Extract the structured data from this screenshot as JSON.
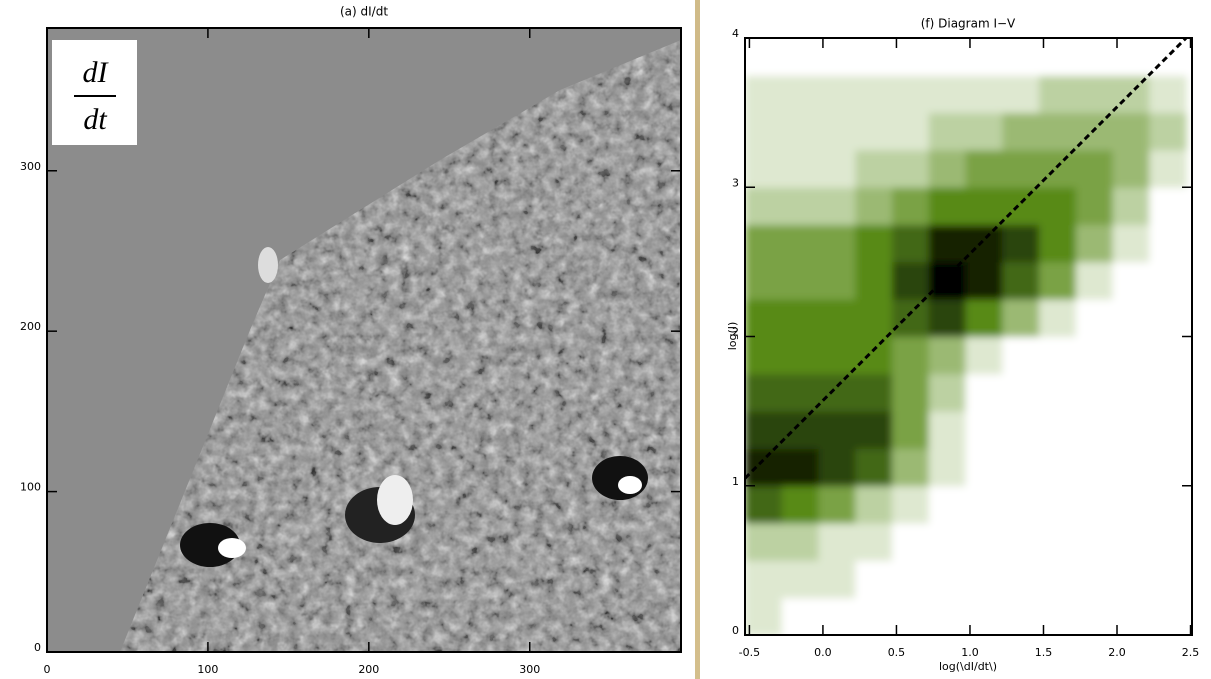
{
  "chart_data": [
    {
      "type": "image",
      "title": "(a)  dI/dt",
      "annotation": [
        "dI",
        "dt"
      ],
      "xlim": [
        0,
        394
      ],
      "ylim": [
        0,
        389
      ],
      "xticks": [
        0,
        100,
        200,
        300
      ],
      "yticks": [
        0,
        100,
        200,
        300
      ]
    },
    {
      "type": "histogram2d",
      "title": "(f)  Diagram I−V",
      "xlabel": "log(\\dI/dt\\)",
      "ylabel": "log(I)",
      "xlim": [
        -0.53,
        2.51
      ],
      "ylim": [
        0,
        4
      ],
      "xticks": [
        -0.5,
        {
          "value": 0,
          "label": "0.0"
        },
        0.5,
        {
          "value": 1,
          "label": "1.0"
        },
        1.5,
        {
          "value": 2,
          "label": "2.0"
        },
        2.5
      ],
      "yticks": [
        0,
        1,
        2,
        3,
        4
      ],
      "xbins": [
        -0.53,
        -0.28,
        -0.03,
        0.22,
        0.47,
        0.72,
        0.97,
        1.22,
        1.47,
        1.72,
        1.97,
        2.22,
        2.47
      ],
      "ybins": [
        0,
        0.25,
        0.5,
        0.75,
        1,
        1.25,
        1.5,
        1.75,
        2,
        2.25,
        2.5,
        2.75,
        3,
        3.25,
        3.5,
        3.75,
        4
      ],
      "z": [
        [
          1,
          0,
          0,
          0,
          0,
          0,
          0,
          0,
          0,
          0,
          0,
          0
        ],
        [
          1,
          1,
          1,
          0,
          0,
          0,
          0,
          0,
          0,
          0,
          0,
          0
        ],
        [
          2,
          2,
          1,
          1,
          0,
          0,
          0,
          0,
          0,
          0,
          0,
          0
        ],
        [
          6,
          5,
          4,
          2,
          1,
          0,
          0,
          0,
          0,
          0,
          0,
          0
        ],
        [
          8,
          8,
          7,
          6,
          3,
          1,
          0,
          0,
          0,
          0,
          0,
          0
        ],
        [
          7,
          7,
          7,
          7,
          4,
          1,
          0,
          0,
          0,
          0,
          0,
          0
        ],
        [
          6,
          6,
          6,
          6,
          4,
          2,
          0,
          0,
          0,
          0,
          0,
          0
        ],
        [
          5,
          5,
          5,
          5,
          4,
          3,
          1,
          0,
          0,
          0,
          0,
          0
        ],
        [
          5,
          5,
          5,
          5,
          6,
          7,
          5,
          3,
          1,
          0,
          0,
          0
        ],
        [
          4,
          4,
          4,
          5,
          7,
          9,
          8,
          6,
          4,
          1,
          0,
          0
        ],
        [
          4,
          4,
          4,
          5,
          6,
          8,
          8,
          7,
          5,
          3,
          1,
          0
        ],
        [
          2,
          2,
          2,
          3,
          4,
          5,
          5,
          5,
          5,
          4,
          2,
          0
        ],
        [
          1,
          1,
          1,
          2,
          2,
          3,
          4,
          4,
          4,
          4,
          3,
          1
        ],
        [
          1,
          1,
          1,
          1,
          1,
          2,
          2,
          3,
          3,
          3,
          3,
          2
        ],
        [
          1,
          1,
          1,
          1,
          1,
          1,
          1,
          1,
          2,
          2,
          2,
          1
        ],
        [
          0,
          0,
          0,
          0,
          0,
          0,
          0,
          0,
          0,
          0,
          0,
          0
        ]
      ],
      "line": {
        "x": [
          -0.53,
          2.47
        ],
        "y": [
          1.05,
          4
        ]
      }
    }
  ]
}
